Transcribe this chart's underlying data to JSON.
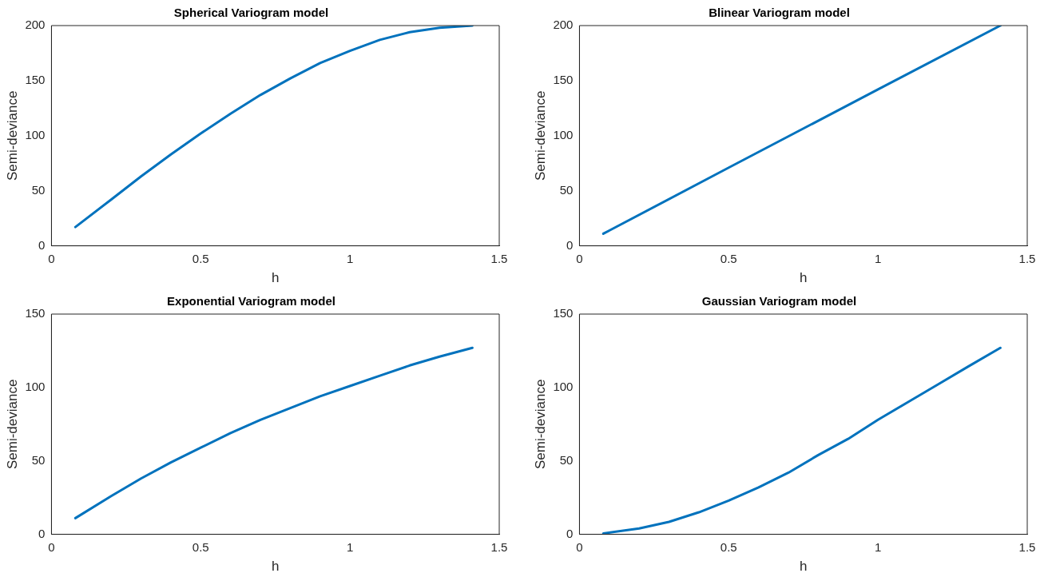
{
  "chart_data": [
    {
      "type": "line",
      "title": "Spherical Variogram model",
      "xlabel": "h",
      "ylabel": "Semi-deviance",
      "x": [
        0.08,
        0.2,
        0.3,
        0.4,
        0.5,
        0.6,
        0.7,
        0.8,
        0.9,
        1.0,
        1.1,
        1.2,
        1.3,
        1.41
      ],
      "series": [
        {
          "color": "#0072bd",
          "values": [
            17,
            42,
            63,
            83,
            102,
            120,
            137,
            152,
            166,
            177,
            187,
            194,
            198,
            200
          ]
        }
      ],
      "xlim": [
        0,
        1.5
      ],
      "xticks": [
        0,
        0.5,
        1,
        1.5
      ],
      "ylim": [
        0,
        200
      ],
      "yticks": [
        0,
        50,
        100,
        150,
        200
      ],
      "grid": false
    },
    {
      "type": "line",
      "title": "Blinear Variogram model",
      "xlabel": "h",
      "ylabel": "Semi-deviance",
      "x": [
        0.08,
        0.5,
        1.0,
        1.41
      ],
      "series": [
        {
          "color": "#0072bd",
          "values": [
            11,
            71,
            142,
            200
          ]
        }
      ],
      "xlim": [
        0,
        1.5
      ],
      "xticks": [
        0,
        0.5,
        1,
        1.5
      ],
      "ylim": [
        0,
        200
      ],
      "yticks": [
        0,
        50,
        100,
        150,
        200
      ],
      "grid": false
    },
    {
      "type": "line",
      "title": "Exponential Variogram model",
      "xlabel": "h",
      "ylabel": "Semi-deviance",
      "x": [
        0.08,
        0.2,
        0.3,
        0.4,
        0.5,
        0.6,
        0.7,
        0.8,
        0.9,
        1.0,
        1.1,
        1.2,
        1.3,
        1.41
      ],
      "series": [
        {
          "color": "#0072bd",
          "values": [
            11,
            26,
            38,
            49,
            59,
            69,
            78,
            86,
            94,
            101,
            108,
            115,
            121,
            127
          ]
        }
      ],
      "xlim": [
        0,
        1.5
      ],
      "xticks": [
        0,
        0.5,
        1,
        1.5
      ],
      "ylim": [
        0,
        150
      ],
      "yticks": [
        0,
        50,
        100,
        150
      ],
      "grid": false
    },
    {
      "type": "line",
      "title": "Gaussian Variogram model",
      "xlabel": "h",
      "ylabel": "Semi-deviance",
      "x": [
        0.08,
        0.2,
        0.3,
        0.4,
        0.5,
        0.6,
        0.7,
        0.8,
        0.9,
        1.0,
        1.1,
        1.2,
        1.3,
        1.41
      ],
      "series": [
        {
          "color": "#0072bd",
          "values": [
            0.6,
            4,
            8.5,
            15,
            23,
            32,
            42,
            54,
            65,
            78,
            90,
            102,
            114,
            127
          ]
        }
      ],
      "xlim": [
        0,
        1.5
      ],
      "xticks": [
        0,
        0.5,
        1,
        1.5
      ],
      "ylim": [
        0,
        150
      ],
      "yticks": [
        0,
        50,
        100,
        150
      ],
      "grid": false
    }
  ]
}
